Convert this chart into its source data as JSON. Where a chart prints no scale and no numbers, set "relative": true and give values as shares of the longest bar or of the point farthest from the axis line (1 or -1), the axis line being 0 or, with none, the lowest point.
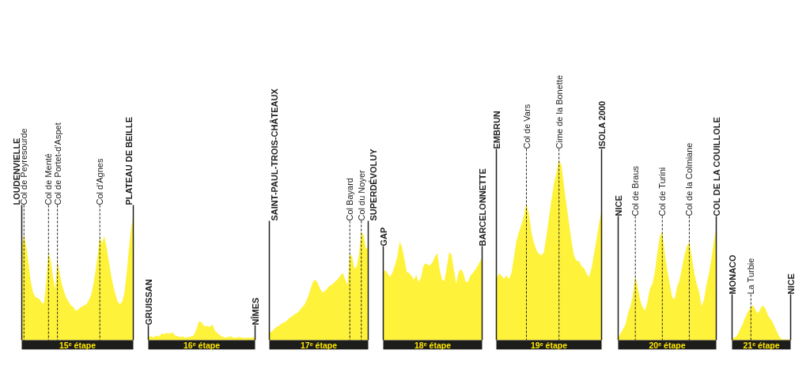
{
  "chart_data": [
    {
      "type": "area",
      "relative": true,
      "color": "#fff23a",
      "xlabel": "15ᵉ étape",
      "grid": "x",
      "annotations": [
        "LOUDENVIELLE",
        "PLATEAU DE BEILLE"
      ],
      "categories": [
        null,
        "Col de Peyresourde",
        null,
        null,
        null,
        null,
        null,
        null,
        null,
        null,
        null,
        null,
        "Col de Menté",
        null,
        null,
        null,
        "Col de Portet-d'Aspet",
        null,
        null,
        null,
        null,
        null,
        null,
        null,
        null,
        null,
        null,
        null,
        null,
        null,
        null,
        null,
        null,
        null,
        null,
        "Col d'Agnes",
        null,
        null,
        null,
        null,
        null,
        null,
        null,
        null,
        null,
        null,
        null,
        null,
        null,
        null,
        null
      ],
      "values": [
        0.75,
        0.85,
        0.76,
        0.62,
        0.48,
        0.39,
        0.35,
        0.34,
        0.33,
        0.3,
        0.3,
        0.48,
        0.71,
        0.64,
        0.51,
        0.41,
        0.64,
        0.54,
        0.45,
        0.39,
        0.34,
        0.31,
        0.28,
        0.27,
        0.24,
        0.24,
        0.26,
        0.27,
        0.28,
        0.29,
        0.32,
        0.36,
        0.44,
        0.55,
        0.68,
        0.83,
        0.78,
        0.84,
        0.75,
        0.64,
        0.53,
        0.44,
        0.37,
        0.31,
        0.29,
        0.31,
        0.38,
        0.53,
        0.73,
        0.9,
        1.0
      ]
    },
    {
      "type": "area",
      "relative": true,
      "color": "#fff23a",
      "xlabel": "16ᵉ étape",
      "categories": [
        "GRUISSAN",
        null,
        null,
        null,
        null,
        null,
        null,
        null,
        null,
        null,
        null,
        null,
        null,
        null,
        null,
        null,
        null,
        null,
        null,
        null,
        null,
        null,
        null,
        null,
        null,
        null,
        null,
        null,
        null,
        null,
        null,
        null,
        null,
        null,
        null,
        null,
        null,
        null,
        null,
        null,
        "NÎMES"
      ],
      "values": [
        0.17,
        0.21,
        0.14,
        0.25,
        0.19,
        0.35,
        0.31,
        0.39,
        0.33,
        0.42,
        0.25,
        0.21,
        0.17,
        0.19,
        0.14,
        0.17,
        0.19,
        0.25,
        0.56,
        1.0,
        0.94,
        0.72,
        0.76,
        0.69,
        0.83,
        0.49,
        0.35,
        0.25,
        0.17,
        0.14,
        0.17,
        0.21,
        0.11,
        0.14,
        0.17,
        0.14,
        0.11,
        0.14,
        0.13,
        0.14,
        0.17
      ]
    },
    {
      "type": "area",
      "relative": true,
      "color": "#fff23a",
      "xlabel": "17ᵉ étape",
      "grid": "x",
      "annotations": [
        "SAINT-PAUL-TROIS-CHÂTEAUX",
        "SUPERDÉVOLUY"
      ],
      "categories": [
        null,
        null,
        null,
        null,
        null,
        null,
        null,
        null,
        null,
        null,
        null,
        null,
        null,
        null,
        null,
        null,
        null,
        null,
        null,
        null,
        null,
        null,
        null,
        null,
        null,
        null,
        null,
        null,
        null,
        null,
        null,
        null,
        null,
        null,
        null,
        "Col Bayard",
        null,
        null,
        null,
        null,
        "Col du Noyer",
        null,
        null,
        null
      ],
      "values": [
        0.07,
        0.08,
        0.1,
        0.12,
        0.13,
        0.15,
        0.16,
        0.17,
        0.19,
        0.21,
        0.22,
        0.24,
        0.25,
        0.27,
        0.3,
        0.32,
        0.36,
        0.41,
        0.48,
        0.54,
        0.56,
        0.53,
        0.48,
        0.44,
        0.45,
        0.47,
        0.5,
        0.51,
        0.53,
        0.55,
        0.57,
        0.6,
        0.62,
        0.56,
        0.51,
        0.8,
        0.77,
        0.66,
        0.68,
        0.8,
        1.0,
        0.97,
        0.84,
        0.87
      ]
    },
    {
      "type": "area",
      "relative": true,
      "color": "#fff23a",
      "xlabel": "18ᵉ étape",
      "categories": [
        "GAP",
        null,
        null,
        null,
        null,
        null,
        null,
        null,
        null,
        null,
        null,
        null,
        null,
        null,
        null,
        null,
        null,
        null,
        null,
        null,
        null,
        null,
        null,
        null,
        null,
        null,
        null,
        null,
        null,
        null,
        null,
        null,
        null,
        null,
        null,
        null,
        null,
        null,
        null,
        null,
        null,
        null,
        "BARCELONNETTE"
      ],
      "values": [
        0.69,
        0.71,
        0.67,
        0.64,
        0.69,
        0.76,
        0.85,
        1.0,
        0.94,
        0.82,
        0.69,
        0.68,
        0.65,
        0.61,
        0.66,
        0.59,
        0.63,
        0.75,
        0.78,
        0.76,
        0.76,
        0.79,
        0.85,
        0.88,
        0.71,
        0.61,
        0.6,
        0.74,
        0.89,
        0.87,
        0.71,
        0.57,
        0.69,
        0.72,
        0.68,
        0.59,
        0.59,
        0.65,
        0.68,
        0.71,
        0.75,
        0.79,
        0.84
      ]
    },
    {
      "type": "area",
      "relative": true,
      "color": "#fff23a",
      "xlabel": "19ᵉ étape",
      "grid": "x",
      "categories": [
        "EMBRUN",
        null,
        null,
        null,
        null,
        null,
        null,
        null,
        null,
        null,
        null,
        null,
        "Col de Vars",
        null,
        null,
        null,
        null,
        null,
        null,
        null,
        null,
        null,
        null,
        null,
        null,
        "Cime de la Bonette",
        null,
        null,
        null,
        null,
        null,
        null,
        null,
        null,
        null,
        null,
        null,
        null,
        null,
        null,
        null,
        null,
        "ISOLA 2000"
      ],
      "values": [
        0.34,
        0.37,
        0.36,
        0.34,
        0.36,
        0.34,
        0.37,
        0.46,
        0.55,
        0.6,
        0.64,
        0.69,
        0.76,
        0.7,
        0.6,
        0.54,
        0.5,
        0.48,
        0.47,
        0.49,
        0.58,
        0.68,
        0.78,
        0.87,
        0.93,
        1.0,
        0.97,
        0.86,
        0.75,
        0.65,
        0.55,
        0.47,
        0.44,
        0.44,
        0.41,
        0.4,
        0.37,
        0.35,
        0.4,
        0.48,
        0.56,
        0.65,
        0.72
      ]
    },
    {
      "type": "area",
      "relative": true,
      "color": "#fff23a",
      "xlabel": "20ᵉ étape",
      "grid": "x",
      "categories": [
        "NICE",
        null,
        null,
        null,
        null,
        null,
        null,
        "Col de Braus",
        null,
        null,
        null,
        null,
        null,
        null,
        null,
        null,
        null,
        null,
        "Col de Turini",
        null,
        null,
        null,
        null,
        null,
        null,
        null,
        null,
        null,
        null,
        "Col de la Colmiane",
        null,
        null,
        null,
        null,
        null,
        null,
        null,
        null,
        null,
        null,
        "COL DE LA COUILLOLE"
      ],
      "values": [
        0.02,
        0.06,
        0.1,
        0.14,
        0.24,
        0.3,
        0.4,
        0.57,
        0.46,
        0.35,
        0.29,
        0.26,
        0.35,
        0.46,
        0.5,
        0.61,
        0.78,
        0.92,
        0.96,
        0.77,
        0.62,
        0.5,
        0.38,
        0.36,
        0.47,
        0.53,
        0.64,
        0.75,
        0.83,
        0.87,
        0.74,
        0.6,
        0.5,
        0.43,
        0.3,
        0.36,
        0.49,
        0.59,
        0.72,
        0.87,
        1.0
      ]
    },
    {
      "type": "area",
      "relative": true,
      "color": "#fff23a",
      "xlabel": "21ᵉ étape",
      "grid": "x",
      "categories": [
        "MONACO",
        null,
        null,
        null,
        null,
        null,
        null,
        null,
        null,
        "La Turbie",
        null,
        null,
        null,
        null,
        null,
        null,
        null,
        null,
        null,
        null,
        null,
        null,
        null,
        null,
        null,
        null,
        null,
        null,
        "NICE"
      ],
      "values": [
        0.05,
        0.06,
        0.11,
        0.2,
        0.34,
        0.45,
        0.62,
        0.75,
        0.86,
        0.96,
        1.0,
        0.9,
        0.78,
        0.83,
        0.96,
        0.99,
        0.9,
        0.74,
        0.63,
        0.56,
        0.44,
        0.3,
        0.17,
        0.06,
        0.02,
        0.02,
        0.02,
        0.02,
        0.02
      ]
    }
  ]
}
